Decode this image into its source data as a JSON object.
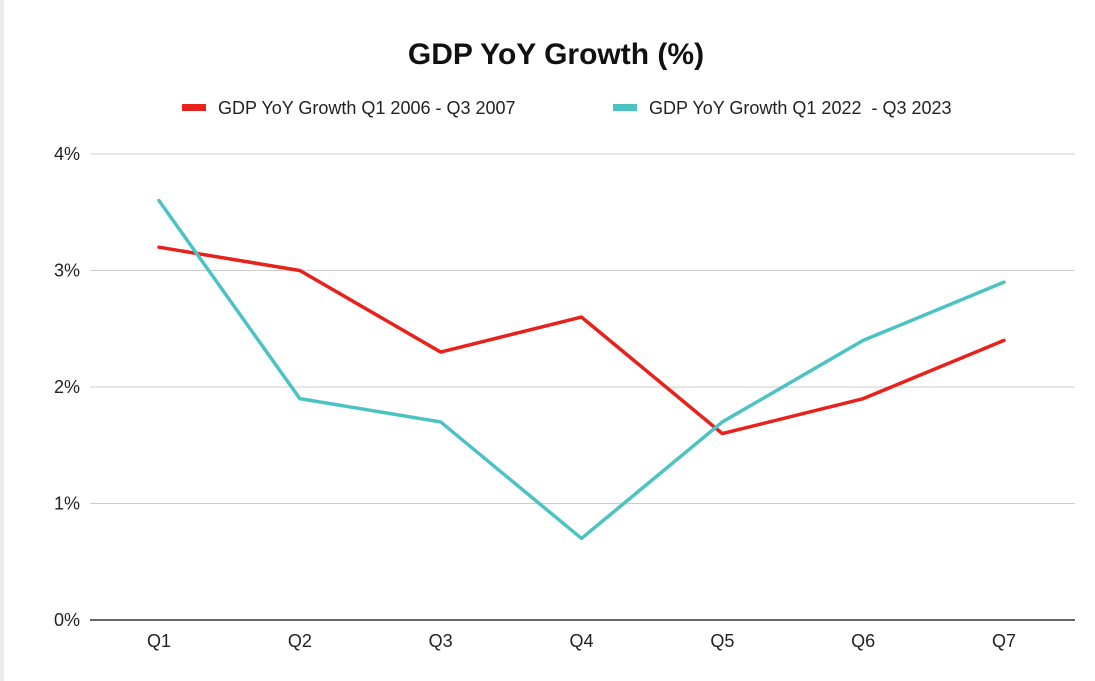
{
  "chart_data": {
    "type": "line",
    "title": "GDP YoY Growth (%)",
    "xlabel": "",
    "ylabel": "",
    "categories": [
      "Q1",
      "Q2",
      "Q3",
      "Q4",
      "Q5",
      "Q6",
      "Q7"
    ],
    "ylim": [
      0,
      4
    ],
    "yticks": [
      "0%",
      "1%",
      "2%",
      "3%",
      "4%"
    ],
    "legend_position": "top",
    "grid": true,
    "series": [
      {
        "name": "GDP YoY Growth Q1 2006 - Q3 2007",
        "color": "#e8221b",
        "values": [
          3.2,
          3.0,
          2.3,
          2.6,
          1.6,
          1.9,
          2.4
        ]
      },
      {
        "name": "GDP YoY Growth Q1 2022  - Q3 2023",
        "color": "#4bc3c4",
        "values": [
          3.6,
          1.9,
          1.7,
          0.7,
          1.7,
          2.4,
          2.9
        ]
      }
    ]
  }
}
